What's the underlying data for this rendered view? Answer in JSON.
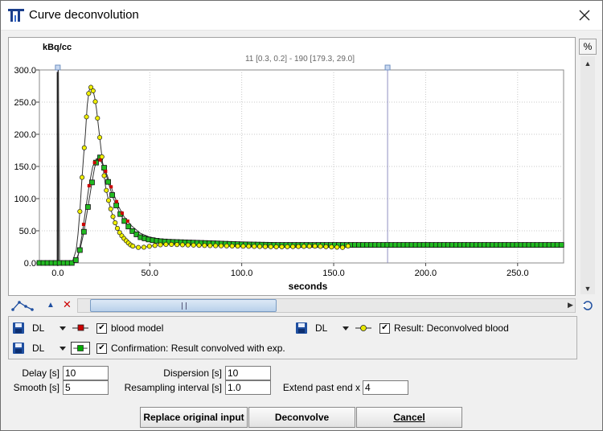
{
  "window": {
    "title": "Curve deconvolution"
  },
  "plot": {
    "y_unit": "kBq/cc",
    "x_label": "seconds",
    "cursor_readout": "11 [0.3, 0.2] - 190 [179.3, 29.0]",
    "percent_button": "%",
    "y_ticks": [
      "0.0",
      "50.0",
      "100.0",
      "150.0",
      "200.0",
      "250.0",
      "300.0"
    ],
    "x_ticks": [
      "0.0",
      "50.0",
      "100.0",
      "150.0",
      "200.0",
      "250.0"
    ]
  },
  "chart_data": {
    "type": "line",
    "xlabel": "seconds",
    "ylabel": "kBq/cc",
    "xlim": [
      -10,
      275
    ],
    "ylim": [
      0,
      300
    ],
    "grid": true,
    "marker_lines_x": [
      0,
      179.3
    ],
    "series": [
      {
        "name": "blood model",
        "color": "#cc0000",
        "x": [
          0,
          0.3,
          1,
          5,
          9,
          11,
          13,
          15,
          17,
          19,
          21,
          23,
          25,
          27,
          30,
          33,
          36,
          40,
          45,
          50,
          60,
          70,
          80,
          100,
          120,
          150,
          200,
          250,
          275
        ],
        "y": [
          0,
          300,
          0,
          0,
          0,
          10,
          40,
          80,
          120,
          150,
          162,
          160,
          150,
          135,
          110,
          88,
          72,
          58,
          46,
          40,
          35,
          33,
          32,
          30,
          29,
          28,
          28,
          28,
          28
        ]
      },
      {
        "name": "Result: Deconvolved blood",
        "color": "#e6e600",
        "x": [
          -10,
          8,
          10,
          11,
          12,
          13,
          14,
          15,
          16,
          17,
          18,
          19,
          20,
          21,
          22,
          23,
          24,
          25,
          26,
          28,
          30,
          32,
          34,
          36,
          38,
          40,
          42,
          44,
          46,
          48,
          50,
          55,
          60,
          70,
          80,
          100,
          120,
          140,
          155,
          160,
          200,
          275
        ],
        "y": [
          0,
          2,
          20,
          45,
          80,
          125,
          165,
          200,
          245,
          268,
          273,
          270,
          258,
          240,
          215,
          190,
          165,
          140,
          118,
          92,
          72,
          56,
          45,
          38,
          32,
          27,
          25,
          24,
          24,
          25,
          26,
          28,
          29,
          28,
          27,
          26,
          25,
          26,
          24,
          28,
          27,
          27
        ]
      },
      {
        "name": "Confirmation: Result convolved with exp.",
        "color": "#00cc00",
        "x": [
          -10,
          8,
          10,
          12,
          14,
          16,
          18,
          19,
          20,
          21,
          22,
          23,
          24,
          25,
          26,
          28,
          30,
          32,
          34,
          36,
          38,
          40,
          42,
          45,
          50,
          55,
          60,
          70,
          80,
          100,
          120,
          150,
          200,
          250,
          275
        ],
        "y": [
          0,
          0,
          5,
          20,
          45,
          80,
          115,
          132,
          148,
          158,
          165,
          164,
          158,
          150,
          140,
          120,
          102,
          88,
          76,
          66,
          58,
          51,
          46,
          40,
          36,
          34,
          33,
          32,
          31,
          29,
          28,
          28,
          28,
          28,
          28
        ]
      }
    ]
  },
  "legend": {
    "items": [
      {
        "dl": "DL",
        "label": "blood model",
        "checked": true,
        "marker_color": "#cc0000"
      },
      {
        "dl": "DL",
        "label": "Result: Deconvolved blood",
        "checked": true,
        "marker_color": "#e6e600"
      },
      {
        "dl": "DL",
        "label": "Confirmation: Result convolved with exp.",
        "checked": true,
        "marker_color": "#00aa00"
      }
    ]
  },
  "params": {
    "delay_label": "Delay [s]",
    "delay_value": "10",
    "smooth_label": "Smooth [s]",
    "smooth_value": "5",
    "dispersion_label": "Dispersion [s]",
    "dispersion_value": "10",
    "resampling_label": "Resampling interval [s]",
    "resampling_value": "1.0",
    "extend_label": "Extend past end x",
    "extend_value": "4"
  },
  "buttons": {
    "replace": "Replace original input",
    "deconvolve": "Deconvolve",
    "cancel": "Cancel"
  }
}
